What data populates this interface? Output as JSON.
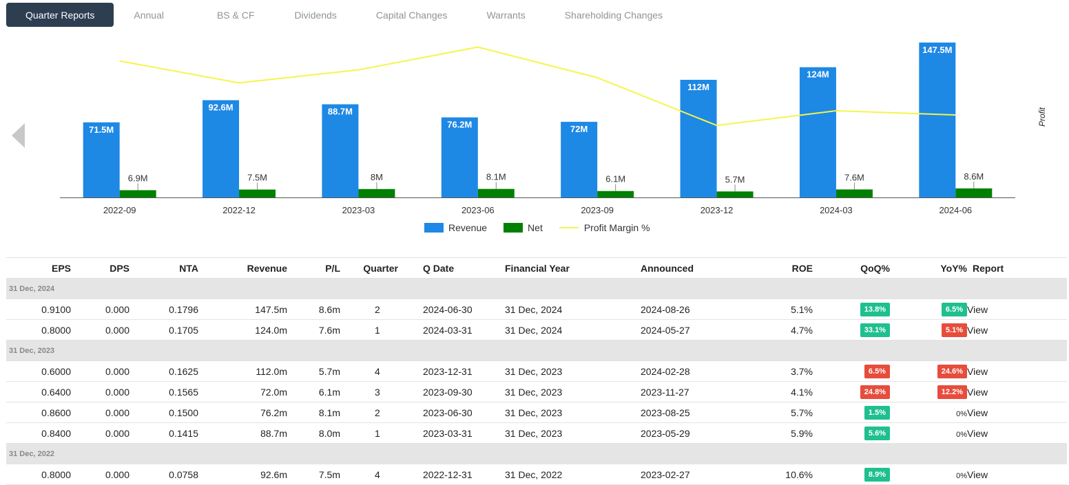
{
  "tabs": [
    "Quarter Reports",
    "Annual",
    "BS & CF",
    "Dividends",
    "Capital Changes",
    "Warrants",
    "Shareholding Changes"
  ],
  "chart_data": {
    "type": "bar",
    "categories": [
      "2022-09",
      "2022-12",
      "2023-03",
      "2023-06",
      "2023-09",
      "2023-12",
      "2024-03",
      "2024-06"
    ],
    "series": [
      {
        "name": "Revenue",
        "type": "bar",
        "color": "#1e88e5",
        "values": [
          71.5,
          92.6,
          88.7,
          76.2,
          72,
          112,
          124,
          147.5
        ],
        "labels": [
          "71.5M",
          "92.6M",
          "88.7M",
          "76.2M",
          "72M",
          "112M",
          "124M",
          "147.5M"
        ]
      },
      {
        "name": "Net",
        "type": "bar",
        "color": "#008000",
        "values": [
          6.9,
          7.5,
          8,
          8.1,
          6.1,
          5.7,
          7.6,
          8.6
        ],
        "labels": [
          "6.9M",
          "7.5M",
          "8M",
          "8.1M",
          "6.1M",
          "5.7M",
          "7.6M",
          "8.6M"
        ]
      },
      {
        "name": "Profit Margin %",
        "type": "line",
        "color": "#f5f54a",
        "values": [
          9.65,
          8.1,
          9.02,
          10.63,
          8.47,
          5.09,
          6.13,
          5.83
        ]
      }
    ],
    "ylim": [
      0,
      150
    ],
    "y2label": "Profit",
    "legend_position": "bottom"
  },
  "table": {
    "headers": [
      "EPS",
      "DPS",
      "NTA",
      "Revenue",
      "P/L",
      "Quarter",
      "Q Date",
      "Financial Year",
      "Announced",
      "ROE",
      "QoQ%",
      "YoY%",
      "Report"
    ],
    "groups": [
      {
        "label": "31 Dec, 2024",
        "rows": [
          {
            "eps": "0.9100",
            "dps": "0.000",
            "nta": "0.1796",
            "revenue": "147.5m",
            "pl": "8.6m",
            "quarter": "2",
            "qdate": "2024-06-30",
            "fy": "31 Dec, 2024",
            "announced": "2024-08-26",
            "roe": "5.1%",
            "qoq": "13.8%",
            "qoq_dir": "up",
            "yoy": "6.5%",
            "yoy_dir": "up",
            "report": "View"
          },
          {
            "eps": "0.8000",
            "dps": "0.000",
            "nta": "0.1705",
            "revenue": "124.0m",
            "pl": "7.6m",
            "quarter": "1",
            "qdate": "2024-03-31",
            "fy": "31 Dec, 2024",
            "announced": "2024-05-27",
            "roe": "4.7%",
            "qoq": "33.1%",
            "qoq_dir": "up",
            "yoy": "5.1%",
            "yoy_dir": "down",
            "report": "View"
          }
        ]
      },
      {
        "label": "31 Dec, 2023",
        "rows": [
          {
            "eps": "0.6000",
            "dps": "0.000",
            "nta": "0.1625",
            "revenue": "112.0m",
            "pl": "5.7m",
            "quarter": "4",
            "qdate": "2023-12-31",
            "fy": "31 Dec, 2023",
            "announced": "2024-02-28",
            "roe": "3.7%",
            "qoq": "6.5%",
            "qoq_dir": "down",
            "yoy": "24.6%",
            "yoy_dir": "down",
            "report": "View"
          },
          {
            "eps": "0.6400",
            "dps": "0.000",
            "nta": "0.1565",
            "revenue": "72.0m",
            "pl": "6.1m",
            "quarter": "3",
            "qdate": "2023-09-30",
            "fy": "31 Dec, 2023",
            "announced": "2023-11-27",
            "roe": "4.1%",
            "qoq": "24.8%",
            "qoq_dir": "down",
            "yoy": "12.2%",
            "yoy_dir": "down",
            "report": "View"
          },
          {
            "eps": "0.8600",
            "dps": "0.000",
            "nta": "0.1500",
            "revenue": "76.2m",
            "pl": "8.1m",
            "quarter": "2",
            "qdate": "2023-06-30",
            "fy": "31 Dec, 2023",
            "announced": "2023-08-25",
            "roe": "5.7%",
            "qoq": "1.5%",
            "qoq_dir": "up",
            "yoy": "0%",
            "yoy_dir": "none",
            "report": "View"
          },
          {
            "eps": "0.8400",
            "dps": "0.000",
            "nta": "0.1415",
            "revenue": "88.7m",
            "pl": "8.0m",
            "quarter": "1",
            "qdate": "2023-03-31",
            "fy": "31 Dec, 2023",
            "announced": "2023-05-29",
            "roe": "5.9%",
            "qoq": "5.6%",
            "qoq_dir": "up",
            "yoy": "0%",
            "yoy_dir": "none",
            "report": "View"
          }
        ]
      },
      {
        "label": "31 Dec, 2022",
        "rows": [
          {
            "eps": "0.8000",
            "dps": "0.000",
            "nta": "0.0758",
            "revenue": "92.6m",
            "pl": "7.5m",
            "quarter": "4",
            "qdate": "2022-12-31",
            "fy": "31 Dec, 2022",
            "announced": "2023-02-27",
            "roe": "10.6%",
            "qoq": "8.9%",
            "qoq_dir": "up",
            "yoy": "0%",
            "yoy_dir": "none",
            "report": "View"
          }
        ]
      }
    ]
  }
}
